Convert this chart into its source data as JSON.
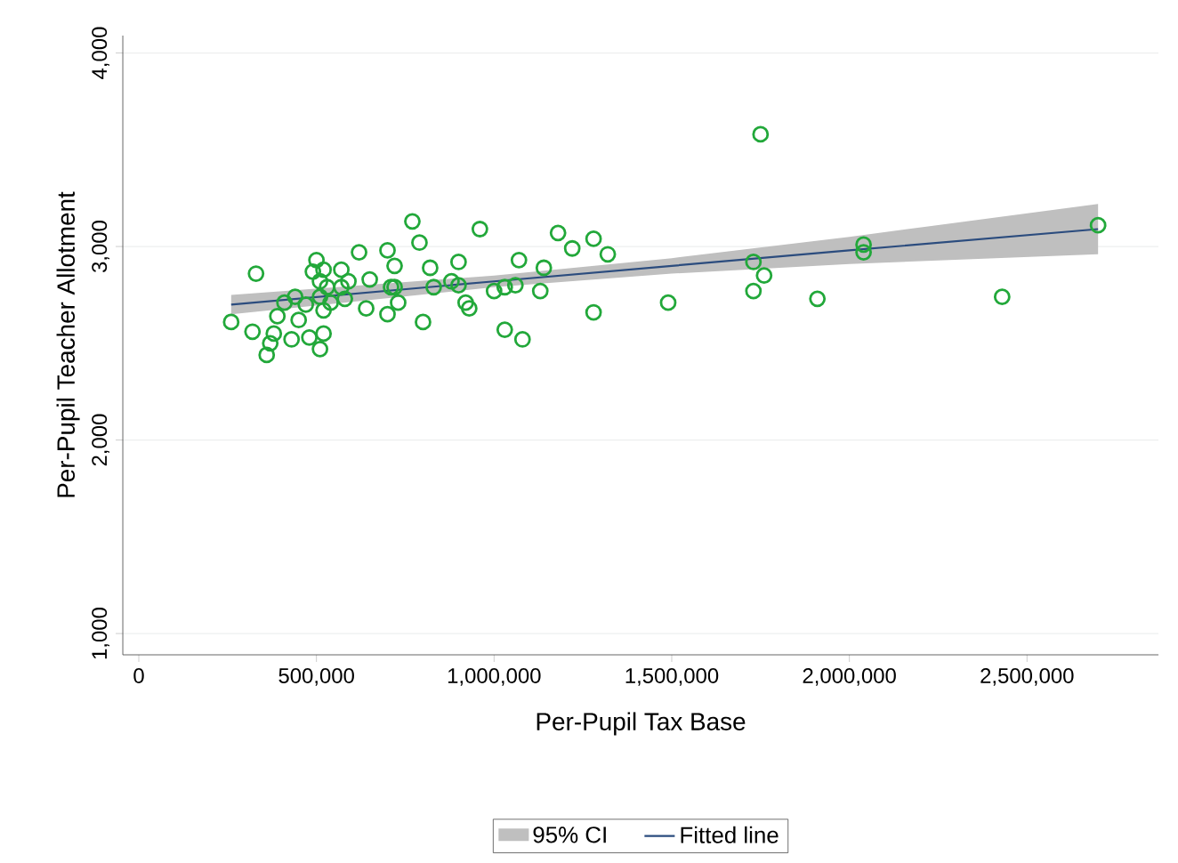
{
  "chart_data": {
    "type": "scatter",
    "xlabel": "Per-Pupil Tax Base",
    "ylabel": "Per-Pupil Teacher Allotment",
    "xlim": [
      -45000,
      2870000
    ],
    "ylim": [
      890,
      4090
    ],
    "xticks": [
      0,
      {
        "value": 500000,
        "label": "500,000"
      },
      {
        "value": 1000000,
        "label": "1,000,000"
      },
      {
        "value": 1500000,
        "label": "1,500,000"
      },
      {
        "value": 2000000,
        "label": "2,000,000"
      },
      {
        "value": 2500000,
        "label": "2,500,000"
      }
    ],
    "yticks": [
      {
        "value": 1000,
        "label": "1,000"
      },
      {
        "value": 2000,
        "label": "2,000"
      },
      {
        "value": 3000,
        "label": "3,000"
      },
      {
        "value": 4000,
        "label": "4,000"
      }
    ],
    "grid": "y",
    "legend": "bottom",
    "annotations": [
      "95% CI"
    ],
    "series": [
      {
        "type": "line",
        "name": "Fitted line",
        "color": "#2b4c7e",
        "line_style": "solid",
        "x": [
          260000,
          1000000,
          1500000,
          2000000,
          2700000
        ],
        "values": [
          2700,
          2820,
          2900,
          2980,
          3090
        ],
        "lower": [
          2650,
          2790,
          2860,
          2910,
          2960
        ],
        "upper": [
          2750,
          2850,
          2940,
          3050,
          3220
        ]
      },
      {
        "color": "#22a83a",
        "marker": "circle",
        "x": [
          260000,
          330000,
          320000,
          360000,
          370000,
          380000,
          390000,
          410000,
          430000,
          440000,
          450000,
          470000,
          480000,
          490000,
          500000,
          510000,
          510000,
          520000,
          510000,
          520000,
          520000,
          530000,
          540000,
          570000,
          570000,
          580000,
          590000,
          620000,
          640000,
          650000,
          700000,
          720000,
          700000,
          710000,
          720000,
          730000,
          770000,
          790000,
          800000,
          820000,
          830000,
          900000,
          880000,
          900000,
          920000,
          930000,
          960000,
          1000000,
          1030000,
          1030000,
          1060000,
          1070000,
          1080000,
          1130000,
          1140000,
          1180000,
          1220000,
          1280000,
          1320000,
          1280000,
          1490000,
          1730000,
          1760000,
          1730000,
          1750000,
          1910000,
          2040000,
          2040000,
          2430000,
          2700000
        ],
        "values": [
          2610,
          2860,
          2560,
          2440,
          2500,
          2550,
          2640,
          2710,
          2520,
          2740,
          2620,
          2700,
          2530,
          2870,
          2930,
          2820,
          2740,
          2670,
          2470,
          2550,
          2880,
          2790,
          2710,
          2880,
          2790,
          2730,
          2820,
          2970,
          2680,
          2830,
          2980,
          2900,
          2650,
          2790,
          2790,
          2710,
          3130,
          3020,
          2610,
          2890,
          2790,
          2920,
          2820,
          2800,
          2710,
          2680,
          3090,
          2770,
          2790,
          2570,
          2800,
          2930,
          2520,
          2770,
          2890,
          3070,
          2990,
          3040,
          2960,
          2660,
          2710,
          2920,
          2850,
          2770,
          3580,
          2730,
          3010,
          2970,
          2740,
          3110
        ]
      }
    ]
  }
}
